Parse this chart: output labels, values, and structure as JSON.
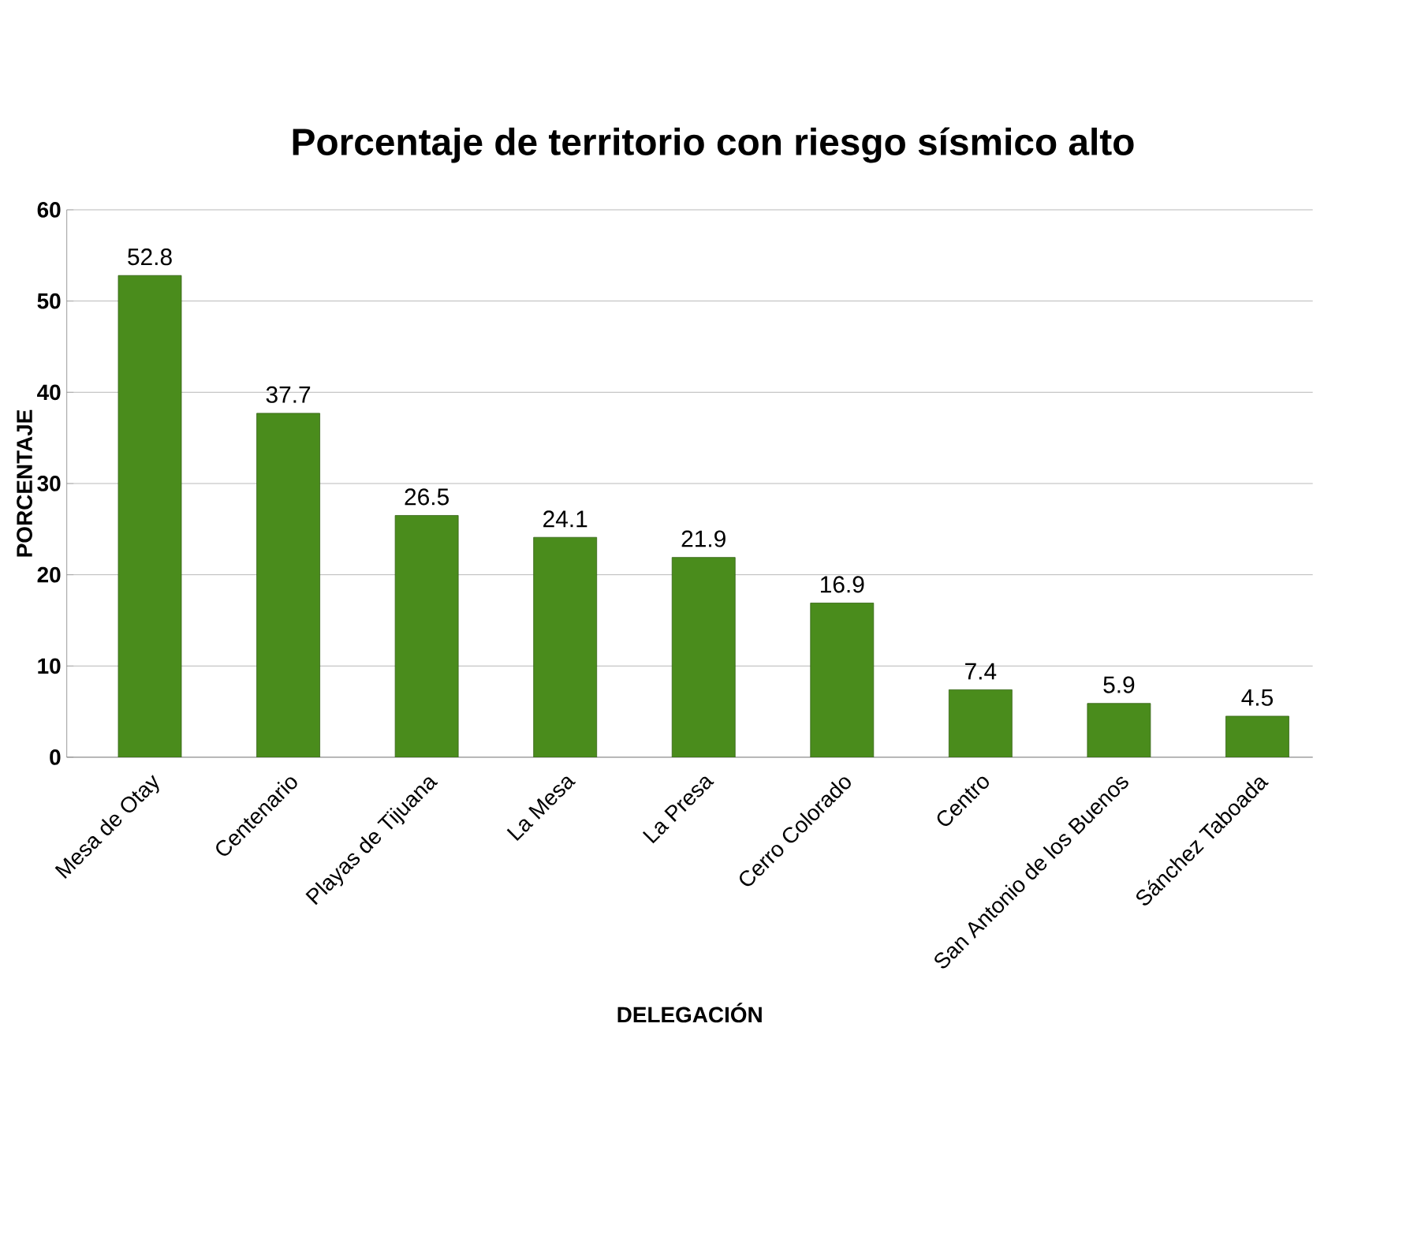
{
  "chart_data": {
    "type": "bar",
    "title": "Porcentaje de territorio con riesgo sísmico alto",
    "xlabel": "DELEGACIÓN",
    "ylabel": "PORCENTAJE",
    "categories": [
      "Mesa de Otay",
      "Centenario",
      "Playas de Tijuana",
      "La Mesa",
      "La Presa",
      "Cerro Colorado",
      "Centro",
      "San Antonio de los Buenos",
      "Sánchez Taboada"
    ],
    "values": [
      52.8,
      37.7,
      26.5,
      24.1,
      21.9,
      16.9,
      7.4,
      5.9,
      4.5
    ],
    "color": "#4a8c1c",
    "ylim": [
      0,
      60
    ],
    "yticks": [
      0,
      10,
      20,
      30,
      40,
      50,
      60
    ],
    "grid": "y",
    "data_labels": true
  }
}
